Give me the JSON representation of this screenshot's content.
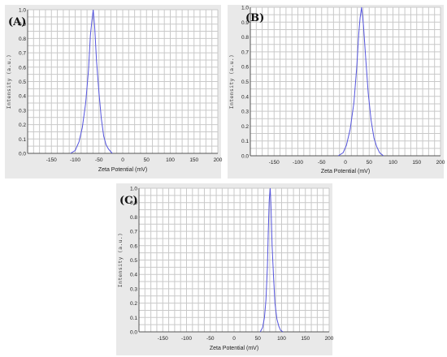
{
  "chart_data": [
    {
      "type": "line",
      "label": "(A)",
      "xlabel": "Zeta Potential (mV)",
      "ylabel": "Intensity (a.u.)",
      "xlim": [
        -200,
        200
      ],
      "ylim": [
        0,
        1.0
      ],
      "xticks": [
        -150,
        -100,
        -50,
        0,
        50,
        100,
        150,
        200
      ],
      "yticks": [
        0.0,
        0.1,
        0.2,
        0.3,
        0.4,
        0.5,
        0.6,
        0.7,
        0.8,
        0.9,
        1.0
      ],
      "grid": true,
      "series": [
        {
          "color": "#5555dd",
          "x": [
            -110,
            -100,
            -92,
            -85,
            -78,
            -72,
            -68,
            -65,
            -62,
            -59,
            -55,
            -50,
            -45,
            -40,
            -35,
            -30,
            -22
          ],
          "y": [
            0.0,
            0.02,
            0.08,
            0.18,
            0.35,
            0.58,
            0.82,
            0.92,
            1.0,
            0.88,
            0.64,
            0.42,
            0.24,
            0.12,
            0.06,
            0.03,
            0.0
          ]
        }
      ]
    },
    {
      "type": "line",
      "label": "(B)",
      "xlabel": "Zeta Potential (mV)",
      "ylabel": "Intensity (a.u.)",
      "xlim": [
        -200,
        200
      ],
      "ylim": [
        0,
        1.0
      ],
      "xticks": [
        -150,
        -100,
        -50,
        0,
        50,
        100,
        150,
        200
      ],
      "yticks": [
        0.0,
        0.1,
        0.2,
        0.3,
        0.4,
        0.5,
        0.6,
        0.7,
        0.8,
        0.9,
        1.0
      ],
      "grid": true,
      "series": [
        {
          "color": "#5555dd",
          "x": [
            -15,
            -5,
            2,
            10,
            18,
            24,
            28,
            31,
            34,
            38,
            43,
            48,
            54,
            60,
            66,
            72,
            80
          ],
          "y": [
            0.0,
            0.02,
            0.07,
            0.18,
            0.36,
            0.6,
            0.82,
            0.93,
            1.0,
            0.88,
            0.64,
            0.42,
            0.24,
            0.12,
            0.06,
            0.02,
            0.0
          ]
        }
      ]
    },
    {
      "type": "line",
      "label": "(C)",
      "xlabel": "Zeta Potential (mV)",
      "ylabel": "Intensity (a.u.)",
      "xlim": [
        -200,
        200
      ],
      "ylim": [
        0,
        1.0
      ],
      "xticks": [
        -150,
        -100,
        -50,
        0,
        50,
        100,
        150,
        200
      ],
      "yticks": [
        0.0,
        0.1,
        0.2,
        0.3,
        0.4,
        0.5,
        0.6,
        0.7,
        0.8,
        0.9,
        1.0
      ],
      "grid": true,
      "series": [
        {
          "color": "#5555dd",
          "x": [
            55,
            60,
            64,
            67,
            70,
            72,
            74,
            76,
            78,
            80,
            83,
            86,
            90,
            94,
            98,
            103
          ],
          "y": [
            0.0,
            0.03,
            0.1,
            0.22,
            0.45,
            0.7,
            0.92,
            1.0,
            0.85,
            0.6,
            0.38,
            0.2,
            0.09,
            0.04,
            0.01,
            0.0
          ]
        }
      ]
    }
  ]
}
